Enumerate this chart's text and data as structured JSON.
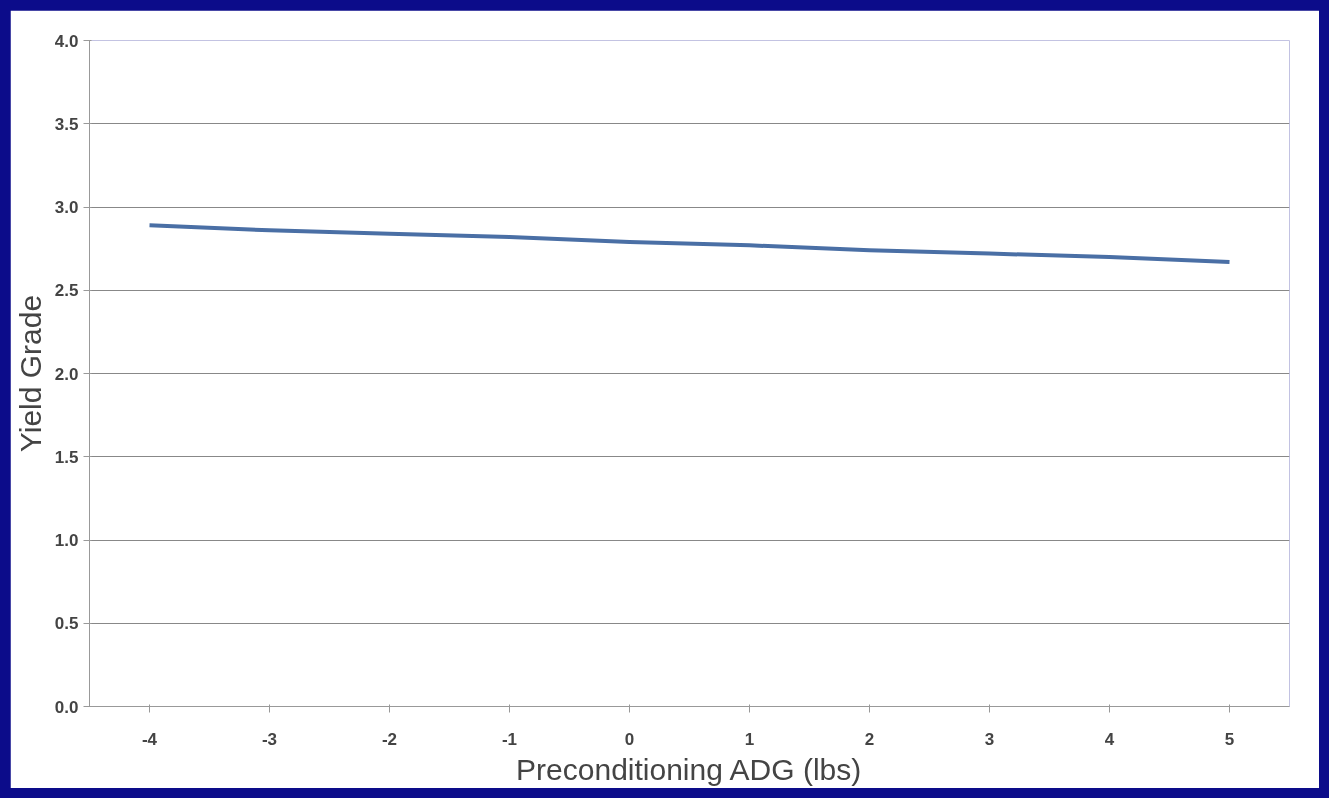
{
  "chart_data": {
    "type": "line",
    "xlabel": "Preconditioning ADG (lbs)",
    "ylabel": "Yield Grade",
    "categories": [
      "-4",
      "-3",
      "-2",
      "-1",
      "0",
      "1",
      "2",
      "3",
      "4",
      "5"
    ],
    "series": [
      {
        "color": "#4a6fa5",
        "values": [
          2.89,
          2.86,
          2.84,
          2.82,
          2.79,
          2.77,
          2.74,
          2.72,
          2.7,
          2.67
        ]
      }
    ],
    "ylim": [
      0,
      4
    ],
    "yticks": [
      {
        "value": 0,
        "label": "0.0"
      },
      {
        "value": 0.5,
        "label": "0.5"
      },
      {
        "value": 1,
        "label": "1.0"
      },
      {
        "value": 1.5,
        "label": "1.5"
      },
      {
        "value": 2,
        "label": "2.0"
      },
      {
        "value": 2.5,
        "label": "2.5"
      },
      {
        "value": 3,
        "label": "3.0"
      },
      {
        "value": 3.5,
        "label": "3.5"
      },
      {
        "value": 4,
        "label": "4.0"
      }
    ],
    "grid": "y"
  }
}
